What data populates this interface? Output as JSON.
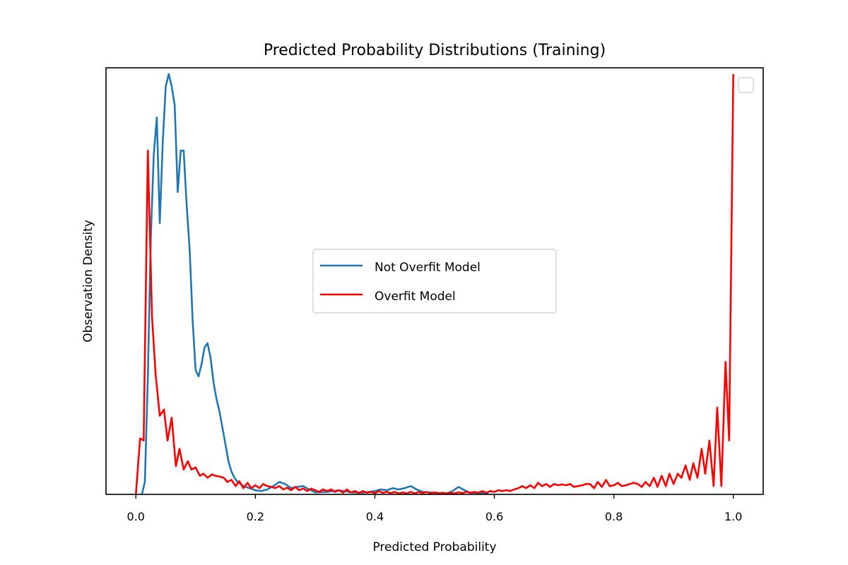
{
  "chart_data": {
    "type": "line",
    "title": "Predicted Probability Distributions (Training)",
    "xlabel": "Predicted Probability",
    "ylabel": "Observation Density",
    "xlim": [
      -0.05,
      1.05
    ],
    "ylim": [
      0,
      1.03
    ],
    "xticks": [
      "0.0",
      "0.2",
      "0.4",
      "0.6",
      "0.8",
      "1.0"
    ],
    "xtick_values": [
      0.0,
      0.2,
      0.4,
      0.6,
      0.8,
      1.0
    ],
    "yticks_shown": false,
    "grid": false,
    "legend_placement": "center",
    "series": [
      {
        "name": "Not Overfit Model",
        "color": "#1f77b4",
        "points": [
          [
            0.01,
            0.0
          ],
          [
            0.015,
            0.03
          ],
          [
            0.02,
            0.28
          ],
          [
            0.025,
            0.62
          ],
          [
            0.03,
            0.82
          ],
          [
            0.035,
            0.91
          ],
          [
            0.04,
            0.655
          ],
          [
            0.045,
            0.85
          ],
          [
            0.05,
            0.985
          ],
          [
            0.055,
            1.015
          ],
          [
            0.06,
            0.985
          ],
          [
            0.065,
            0.94
          ],
          [
            0.07,
            0.73
          ],
          [
            0.075,
            0.83
          ],
          [
            0.08,
            0.83
          ],
          [
            0.085,
            0.7
          ],
          [
            0.09,
            0.59
          ],
          [
            0.095,
            0.42
          ],
          [
            0.1,
            0.3
          ],
          [
            0.105,
            0.285
          ],
          [
            0.11,
            0.315
          ],
          [
            0.115,
            0.355
          ],
          [
            0.12,
            0.365
          ],
          [
            0.125,
            0.33
          ],
          [
            0.13,
            0.27
          ],
          [
            0.135,
            0.23
          ],
          [
            0.14,
            0.2
          ],
          [
            0.145,
            0.16
          ],
          [
            0.15,
            0.12
          ],
          [
            0.155,
            0.08
          ],
          [
            0.16,
            0.055
          ],
          [
            0.165,
            0.04
          ],
          [
            0.17,
            0.03
          ],
          [
            0.175,
            0.025
          ],
          [
            0.18,
            0.02
          ],
          [
            0.19,
            0.015
          ],
          [
            0.2,
            0.01
          ],
          [
            0.21,
            0.008
          ],
          [
            0.22,
            0.012
          ],
          [
            0.23,
            0.02
          ],
          [
            0.24,
            0.03
          ],
          [
            0.25,
            0.025
          ],
          [
            0.26,
            0.015
          ],
          [
            0.27,
            0.018
          ],
          [
            0.28,
            0.02
          ],
          [
            0.29,
            0.012
          ],
          [
            0.3,
            0.005
          ],
          [
            0.32,
            0.006
          ],
          [
            0.34,
            0.01
          ],
          [
            0.36,
            0.005
          ],
          [
            0.38,
            0.004
          ],
          [
            0.4,
            0.008
          ],
          [
            0.41,
            0.012
          ],
          [
            0.42,
            0.01
          ],
          [
            0.43,
            0.015
          ],
          [
            0.44,
            0.012
          ],
          [
            0.45,
            0.015
          ],
          [
            0.46,
            0.02
          ],
          [
            0.47,
            0.012
          ],
          [
            0.48,
            0.006
          ],
          [
            0.5,
            0.004
          ],
          [
            0.52,
            0.002
          ],
          [
            0.53,
            0.008
          ],
          [
            0.54,
            0.018
          ],
          [
            0.55,
            0.01
          ],
          [
            0.56,
            0.004
          ],
          [
            0.58,
            0.003
          ],
          [
            0.59,
            0.002
          ]
        ]
      },
      {
        "name": "Overfit Model",
        "color": "#ff0000",
        "points": [
          [
            0.0,
            0.0
          ],
          [
            0.007,
            0.135
          ],
          [
            0.013,
            0.13
          ],
          [
            0.02,
            0.83
          ],
          [
            0.027,
            0.43
          ],
          [
            0.033,
            0.29
          ],
          [
            0.04,
            0.19
          ],
          [
            0.047,
            0.205
          ],
          [
            0.053,
            0.13
          ],
          [
            0.06,
            0.185
          ],
          [
            0.067,
            0.068
          ],
          [
            0.073,
            0.11
          ],
          [
            0.08,
            0.06
          ],
          [
            0.087,
            0.08
          ],
          [
            0.093,
            0.06
          ],
          [
            0.1,
            0.065
          ],
          [
            0.107,
            0.045
          ],
          [
            0.113,
            0.05
          ],
          [
            0.12,
            0.04
          ],
          [
            0.127,
            0.048
          ],
          [
            0.133,
            0.045
          ],
          [
            0.14,
            0.043
          ],
          [
            0.147,
            0.04
          ],
          [
            0.153,
            0.03
          ],
          [
            0.16,
            0.035
          ],
          [
            0.167,
            0.02
          ],
          [
            0.173,
            0.032
          ],
          [
            0.18,
            0.015
          ],
          [
            0.187,
            0.028
          ],
          [
            0.193,
            0.015
          ],
          [
            0.2,
            0.022
          ],
          [
            0.207,
            0.015
          ],
          [
            0.213,
            0.025
          ],
          [
            0.22,
            0.02
          ],
          [
            0.227,
            0.018
          ],
          [
            0.233,
            0.015
          ],
          [
            0.24,
            0.02
          ],
          [
            0.247,
            0.012
          ],
          [
            0.253,
            0.016
          ],
          [
            0.26,
            0.01
          ],
          [
            0.267,
            0.018
          ],
          [
            0.273,
            0.01
          ],
          [
            0.28,
            0.014
          ],
          [
            0.287,
            0.008
          ],
          [
            0.293,
            0.014
          ],
          [
            0.3,
            0.01
          ],
          [
            0.307,
            0.006
          ],
          [
            0.313,
            0.012
          ],
          [
            0.32,
            0.008
          ],
          [
            0.327,
            0.012
          ],
          [
            0.333,
            0.006
          ],
          [
            0.34,
            0.01
          ],
          [
            0.347,
            0.004
          ],
          [
            0.353,
            0.012
          ],
          [
            0.36,
            0.005
          ],
          [
            0.367,
            0.008
          ],
          [
            0.373,
            0.003
          ],
          [
            0.38,
            0.008
          ],
          [
            0.387,
            0.004
          ],
          [
            0.393,
            0.006
          ],
          [
            0.4,
            0.003
          ],
          [
            0.407,
            0.008
          ],
          [
            0.413,
            0.004
          ],
          [
            0.42,
            0.006
          ],
          [
            0.427,
            0.003
          ],
          [
            0.433,
            0.006
          ],
          [
            0.44,
            0.002
          ],
          [
            0.447,
            0.005
          ],
          [
            0.453,
            0.002
          ],
          [
            0.46,
            0.006
          ],
          [
            0.467,
            0.002
          ],
          [
            0.473,
            0.006
          ],
          [
            0.48,
            0.003
          ],
          [
            0.487,
            0.006
          ],
          [
            0.493,
            0.002
          ],
          [
            0.5,
            0.005
          ],
          [
            0.507,
            0.002
          ],
          [
            0.513,
            0.004
          ],
          [
            0.52,
            0.002
          ],
          [
            0.527,
            0.004
          ],
          [
            0.533,
            0.002
          ],
          [
            0.54,
            0.005
          ],
          [
            0.547,
            0.003
          ],
          [
            0.553,
            0.006
          ],
          [
            0.56,
            0.004
          ],
          [
            0.567,
            0.006
          ],
          [
            0.573,
            0.004
          ],
          [
            0.58,
            0.008
          ],
          [
            0.587,
            0.004
          ],
          [
            0.593,
            0.008
          ],
          [
            0.6,
            0.006
          ],
          [
            0.607,
            0.01
          ],
          [
            0.613,
            0.008
          ],
          [
            0.62,
            0.01
          ],
          [
            0.627,
            0.008
          ],
          [
            0.633,
            0.012
          ],
          [
            0.64,
            0.015
          ],
          [
            0.647,
            0.02
          ],
          [
            0.653,
            0.015
          ],
          [
            0.66,
            0.022
          ],
          [
            0.667,
            0.015
          ],
          [
            0.673,
            0.028
          ],
          [
            0.68,
            0.02
          ],
          [
            0.687,
            0.025
          ],
          [
            0.693,
            0.018
          ],
          [
            0.7,
            0.025
          ],
          [
            0.707,
            0.022
          ],
          [
            0.713,
            0.024
          ],
          [
            0.72,
            0.022
          ],
          [
            0.727,
            0.025
          ],
          [
            0.733,
            0.018
          ],
          [
            0.74,
            0.02
          ],
          [
            0.747,
            0.022
          ],
          [
            0.753,
            0.025
          ],
          [
            0.76,
            0.025
          ],
          [
            0.767,
            0.015
          ],
          [
            0.773,
            0.03
          ],
          [
            0.78,
            0.018
          ],
          [
            0.787,
            0.035
          ],
          [
            0.793,
            0.02
          ],
          [
            0.8,
            0.022
          ],
          [
            0.807,
            0.028
          ],
          [
            0.813,
            0.02
          ],
          [
            0.82,
            0.022
          ],
          [
            0.827,
            0.025
          ],
          [
            0.833,
            0.028
          ],
          [
            0.84,
            0.025
          ],
          [
            0.847,
            0.018
          ],
          [
            0.853,
            0.03
          ],
          [
            0.86,
            0.02
          ],
          [
            0.867,
            0.04
          ],
          [
            0.873,
            0.018
          ],
          [
            0.88,
            0.045
          ],
          [
            0.887,
            0.02
          ],
          [
            0.893,
            0.05
          ],
          [
            0.9,
            0.025
          ],
          [
            0.907,
            0.05
          ],
          [
            0.913,
            0.04
          ],
          [
            0.92,
            0.07
          ],
          [
            0.927,
            0.035
          ],
          [
            0.933,
            0.075
          ],
          [
            0.94,
            0.04
          ],
          [
            0.947,
            0.11
          ],
          [
            0.953,
            0.05
          ],
          [
            0.96,
            0.13
          ],
          [
            0.967,
            0.02
          ],
          [
            0.973,
            0.21
          ],
          [
            0.98,
            0.02
          ],
          [
            0.987,
            0.32
          ],
          [
            0.993,
            0.13
          ],
          [
            1.0,
            1.015
          ]
        ]
      }
    ]
  }
}
